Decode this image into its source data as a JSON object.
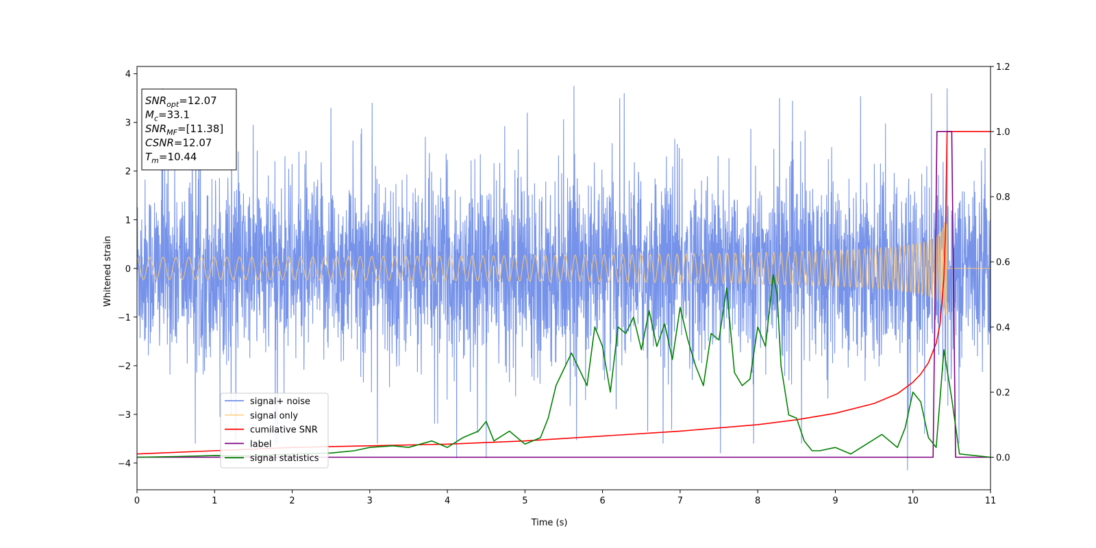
{
  "chart_data": {
    "type": "line",
    "xlabel": "Time (s)",
    "ylabel": "Whitened strain",
    "xlim": [
      0,
      11
    ],
    "ylim_left": [
      -4.55,
      4.15
    ],
    "ylim_right": [
      -0.1,
      1.2
    ],
    "x_ticks": [
      "0",
      "1",
      "2",
      "3",
      "4",
      "5",
      "6",
      "7",
      "8",
      "9",
      "10",
      "11"
    ],
    "y_ticks_left": [
      "−4",
      "−3",
      "−2",
      "−1",
      "0",
      "1",
      "2",
      "3",
      "4"
    ],
    "y_ticks_right": [
      "0.0",
      "0.2",
      "0.4",
      "0.6",
      "0.8",
      "1.0",
      "1.2"
    ],
    "grid": false,
    "legend_position": "lower-left",
    "info_box": {
      "lines": [
        {
          "main": "SNR",
          "sub": "opt",
          "rest": "=12.07"
        },
        {
          "main": "M",
          "sub": "c",
          "rest": "=33.1"
        },
        {
          "main": "SNR",
          "sub": "MF",
          "rest": "=[11.38]"
        },
        {
          "main": "CSNR",
          "sub": "",
          "rest": "=12.07"
        },
        {
          "main": "T",
          "sub": "m",
          "rest": "=10.44"
        }
      ]
    },
    "series": [
      {
        "name": "signal+ noise",
        "color": "#4169e1",
        "axis": "left",
        "noise_amplitude": 1.0,
        "spike_examples_x": [
          0.33,
          1.22,
          2.5,
          3.03,
          4.12,
          4.5,
          5.03,
          5.63,
          6.22,
          7.52,
          8.28,
          9.93,
          10.44
        ],
        "spike_examples_y": [
          3.7,
          3.2,
          3.3,
          3.4,
          -3.9,
          -3.9,
          3.2,
          3.75,
          3.5,
          -3.8,
          3.5,
          -4.15,
          3.7
        ]
      },
      {
        "name": "signal only",
        "color": "#ffc870",
        "axis": "left",
        "chirp_end_time": 10.44,
        "peak_amplitude": 1.3
      },
      {
        "name": "cumilative SNR",
        "color": "#ff0000",
        "axis": "right",
        "x": [
          0,
          1,
          2,
          3,
          4,
          5,
          6,
          7,
          8,
          8.5,
          9,
          9.5,
          9.8,
          10.0,
          10.1,
          10.2,
          10.3,
          10.35,
          10.4,
          10.42,
          10.44,
          10.5,
          11
        ],
        "y": [
          0.01,
          0.02,
          0.03,
          0.035,
          0.04,
          0.05,
          0.065,
          0.08,
          0.1,
          0.115,
          0.135,
          0.165,
          0.195,
          0.23,
          0.255,
          0.29,
          0.35,
          0.41,
          0.55,
          0.7,
          1.0,
          1.0,
          1.0
        ]
      },
      {
        "name": "label",
        "color": "#800080",
        "axis": "right",
        "x": [
          0,
          10.26,
          10.31,
          10.5,
          10.55,
          11
        ],
        "y": [
          0,
          0,
          1,
          1,
          0,
          0
        ]
      },
      {
        "name": "signal statistics",
        "color": "#008000",
        "axis": "right",
        "x": [
          0,
          0.5,
          1,
          1.5,
          2,
          2.5,
          2.8,
          3,
          3.3,
          3.5,
          3.8,
          4,
          4.2,
          4.4,
          4.5,
          4.6,
          4.8,
          5.0,
          5.2,
          5.3,
          5.4,
          5.5,
          5.6,
          5.7,
          5.8,
          5.9,
          6.0,
          6.1,
          6.2,
          6.3,
          6.4,
          6.5,
          6.6,
          6.7,
          6.8,
          6.9,
          7.0,
          7.1,
          7.2,
          7.3,
          7.4,
          7.5,
          7.6,
          7.7,
          7.8,
          7.9,
          8.0,
          8.1,
          8.2,
          8.25,
          8.3,
          8.4,
          8.5,
          8.6,
          8.7,
          8.8,
          9.0,
          9.2,
          9.4,
          9.6,
          9.8,
          9.9,
          10.0,
          10.1,
          10.2,
          10.3,
          10.4,
          10.5,
          10.6,
          11
        ],
        "y": [
          0.0,
          0.002,
          0.005,
          0.004,
          0.01,
          0.013,
          0.02,
          0.03,
          0.035,
          0.03,
          0.05,
          0.03,
          0.06,
          0.08,
          0.11,
          0.05,
          0.08,
          0.04,
          0.06,
          0.12,
          0.22,
          0.27,
          0.32,
          0.27,
          0.22,
          0.4,
          0.34,
          0.2,
          0.4,
          0.38,
          0.43,
          0.33,
          0.45,
          0.34,
          0.41,
          0.3,
          0.46,
          0.36,
          0.28,
          0.22,
          0.38,
          0.36,
          0.52,
          0.26,
          0.22,
          0.24,
          0.4,
          0.34,
          0.56,
          0.5,
          0.28,
          0.13,
          0.12,
          0.05,
          0.02,
          0.02,
          0.03,
          0.01,
          0.04,
          0.07,
          0.03,
          0.09,
          0.2,
          0.17,
          0.06,
          0.03,
          0.33,
          0.18,
          0.01,
          0.0
        ]
      }
    ]
  }
}
